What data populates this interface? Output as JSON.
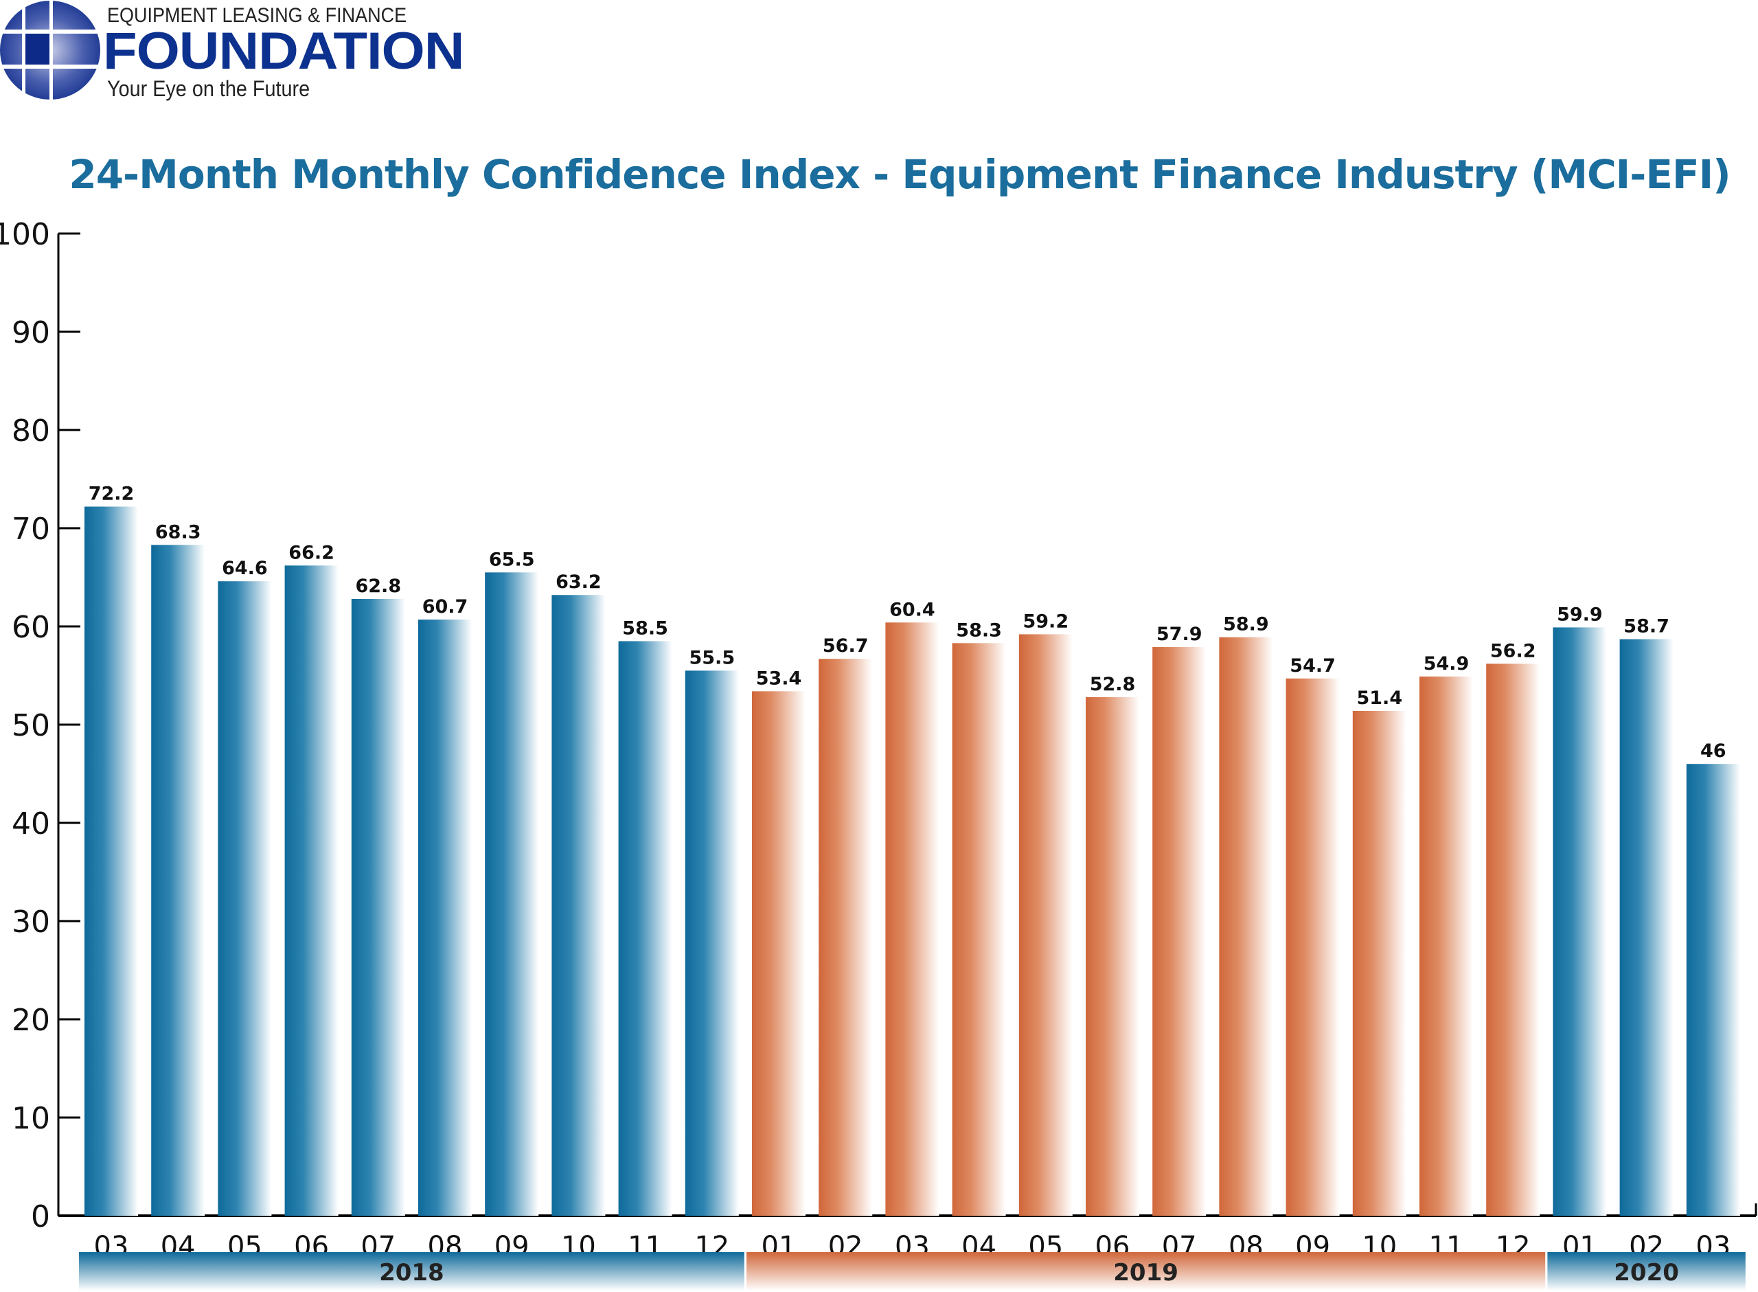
{
  "logo": {
    "top_line": "EQUIPMENT LEASING & FINANCE",
    "main": "FOUNDATION",
    "tagline": "Your Eye on the Future",
    "color": "#0d318f"
  },
  "chart_data": {
    "type": "bar",
    "title": "24-Month Monthly Confidence Index - Equipment Finance Industry (MCI-EFI)",
    "xlabel": "",
    "ylabel": "",
    "ylim": [
      0,
      100
    ],
    "yticks": [
      0,
      10,
      20,
      30,
      40,
      50,
      60,
      70,
      80,
      90,
      100
    ],
    "grid": false,
    "categories": [
      "03",
      "04",
      "05",
      "06",
      "07",
      "08",
      "09",
      "10",
      "11",
      "12",
      "01",
      "02",
      "03",
      "04",
      "05",
      "06",
      "07",
      "08",
      "09",
      "10",
      "11",
      "12",
      "01",
      "02",
      "03"
    ],
    "years": [
      "2018",
      "2018",
      "2018",
      "2018",
      "2018",
      "2018",
      "2018",
      "2018",
      "2018",
      "2018",
      "2019",
      "2019",
      "2019",
      "2019",
      "2019",
      "2019",
      "2019",
      "2019",
      "2019",
      "2019",
      "2019",
      "2019",
      "2020",
      "2020",
      "2020"
    ],
    "values": [
      72.2,
      68.3,
      64.6,
      66.2,
      62.8,
      60.7,
      65.5,
      63.2,
      58.5,
      55.5,
      53.4,
      56.7,
      60.4,
      58.3,
      59.2,
      52.8,
      57.9,
      58.9,
      54.7,
      51.4,
      54.9,
      56.2,
      59.9,
      58.7,
      46
    ],
    "year_groups": [
      {
        "label": "2018",
        "start": 0,
        "end": 9,
        "color": "#0e6a9a"
      },
      {
        "label": "2019",
        "start": 10,
        "end": 21,
        "color": "#d0673a"
      },
      {
        "label": "2020",
        "start": 22,
        "end": 24,
        "color": "#0e6a9a"
      }
    ]
  }
}
